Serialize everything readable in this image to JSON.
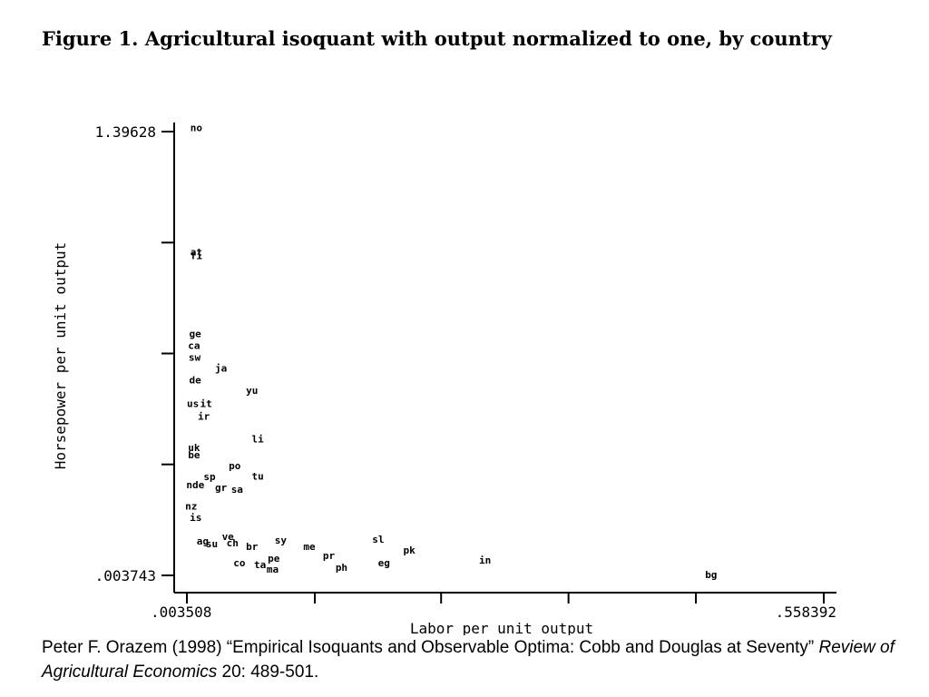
{
  "figure": {
    "title": "Figure 1.  Agricultural isoquant with output normalized to one, by country"
  },
  "citation": {
    "part1": "Peter F. Orazem (1998) “Empirical Isoquants and Observable Optima: Cobb and Douglas at Seventy”",
    "journal": "Review of Agricultural Economics",
    "part2": " 20: 489-501."
  },
  "chart_data": {
    "type": "scatter",
    "xlabel": "Labor per unit output",
    "ylabel": "Horsepower per unit output",
    "xlim": [
      0.003508,
      0.558392
    ],
    "ylim": [
      0.003743,
      1.39628
    ],
    "x_tick_labels": [
      ".003508",
      ".558392"
    ],
    "y_tick_labels": [
      ".003743",
      "1.39628"
    ],
    "x_ticks": [
      0.003508,
      0.115,
      0.225,
      0.336,
      0.447,
      0.558392
    ],
    "y_ticks": [
      0.003743,
      0.352,
      0.7,
      1.048,
      1.39628
    ],
    "grid": false,
    "legend": "none",
    "marker": "country-code label",
    "points": [
      {
        "label": "no",
        "x": 0.0065,
        "y": 1.409
      },
      {
        "label": "at",
        "x": 0.0065,
        "y": 1.019
      },
      {
        "label": "fi",
        "x": 0.0065,
        "y": 1.007
      },
      {
        "label": "ge",
        "x": 0.0055,
        "y": 0.763
      },
      {
        "label": "ca",
        "x": 0.0045,
        "y": 0.726
      },
      {
        "label": "sw",
        "x": 0.005,
        "y": 0.689
      },
      {
        "label": "ja",
        "x": 0.028,
        "y": 0.655
      },
      {
        "label": "de",
        "x": 0.0055,
        "y": 0.618
      },
      {
        "label": "yu",
        "x": 0.055,
        "y": 0.584
      },
      {
        "label": "us",
        "x": 0.0035,
        "y": 0.544
      },
      {
        "label": "it",
        "x": 0.015,
        "y": 0.544
      },
      {
        "label": "ir",
        "x": 0.013,
        "y": 0.504
      },
      {
        "label": "li",
        "x": 0.06,
        "y": 0.433
      },
      {
        "label": "uk",
        "x": 0.0045,
        "y": 0.405
      },
      {
        "label": "be",
        "x": 0.0045,
        "y": 0.382
      },
      {
        "label": "po",
        "x": 0.04,
        "y": 0.348
      },
      {
        "label": "tu",
        "x": 0.06,
        "y": 0.316
      },
      {
        "label": "sp",
        "x": 0.018,
        "y": 0.314
      },
      {
        "label": "nde",
        "x": 0.003,
        "y": 0.288
      },
      {
        "label": "gr",
        "x": 0.028,
        "y": 0.28
      },
      {
        "label": "sa",
        "x": 0.042,
        "y": 0.274
      },
      {
        "label": "nz",
        "x": 0.002,
        "y": 0.222
      },
      {
        "label": "is",
        "x": 0.006,
        "y": 0.186
      },
      {
        "label": "ve",
        "x": 0.034,
        "y": 0.126
      },
      {
        "label": "ag",
        "x": 0.012,
        "y": 0.112
      },
      {
        "label": "su",
        "x": 0.02,
        "y": 0.103
      },
      {
        "label": "ch",
        "x": 0.038,
        "y": 0.106
      },
      {
        "label": "sy",
        "x": 0.08,
        "y": 0.115
      },
      {
        "label": "br",
        "x": 0.055,
        "y": 0.095
      },
      {
        "label": "me",
        "x": 0.105,
        "y": 0.095
      },
      {
        "label": "sl",
        "x": 0.165,
        "y": 0.118
      },
      {
        "label": "pk",
        "x": 0.192,
        "y": 0.083
      },
      {
        "label": "pr",
        "x": 0.122,
        "y": 0.066
      },
      {
        "label": "pe",
        "x": 0.074,
        "y": 0.058
      },
      {
        "label": "in",
        "x": 0.258,
        "y": 0.052
      },
      {
        "label": "co",
        "x": 0.044,
        "y": 0.044
      },
      {
        "label": "ta",
        "x": 0.062,
        "y": 0.038
      },
      {
        "label": "ma",
        "x": 0.073,
        "y": 0.024
      },
      {
        "label": "eg",
        "x": 0.17,
        "y": 0.043
      },
      {
        "label": "ph",
        "x": 0.133,
        "y": 0.029
      },
      {
        "label": "bg",
        "x": 0.455,
        "y": 0.006
      }
    ]
  }
}
